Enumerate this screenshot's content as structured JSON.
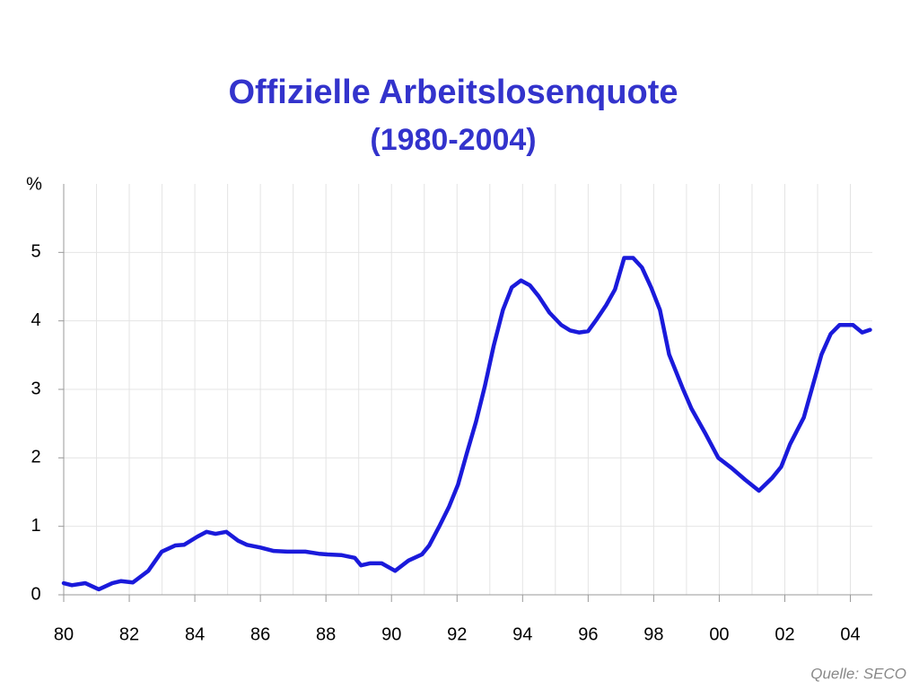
{
  "chart_data": {
    "type": "line",
    "title": "Offizielle Arbeitslosenquote",
    "subtitle": "(1980-2004)",
    "y_label": "%",
    "source": "Quelle: SECO",
    "x": [
      1980.0,
      1980.25,
      1980.66,
      1981.07,
      1981.48,
      1981.75,
      1982.11,
      1982.58,
      1982.99,
      1983.4,
      1983.67,
      1984.08,
      1984.36,
      1984.63,
      1984.96,
      1985.32,
      1985.59,
      1986.0,
      1986.41,
      1986.82,
      1987.37,
      1987.78,
      1988.05,
      1988.47,
      1988.88,
      1989.07,
      1989.34,
      1989.7,
      1990.11,
      1990.52,
      1990.93,
      1991.15,
      1991.48,
      1991.75,
      1992.03,
      1992.3,
      1992.58,
      1992.85,
      1993.12,
      1993.4,
      1993.67,
      1993.95,
      1994.22,
      1994.49,
      1994.82,
      1995.18,
      1995.45,
      1995.73,
      1996.0,
      1996.27,
      1996.55,
      1996.82,
      1997.1,
      1997.37,
      1997.64,
      1997.92,
      1998.19,
      1998.47,
      1998.88,
      1999.15,
      1999.56,
      1999.97,
      2000.38,
      2000.79,
      2001.21,
      2001.62,
      2001.89,
      2002.16,
      2002.58,
      2002.85,
      2003.12,
      2003.4,
      2003.67,
      2004.08,
      2004.36,
      2004.6
    ],
    "series": [
      {
        "name": "Arbeitslosenquote",
        "color": "#1a1adb",
        "values": [
          0.17,
          0.14,
          0.17,
          0.08,
          0.17,
          0.2,
          0.18,
          0.35,
          0.63,
          0.72,
          0.73,
          0.85,
          0.92,
          0.89,
          0.92,
          0.79,
          0.73,
          0.69,
          0.64,
          0.63,
          0.63,
          0.6,
          0.59,
          0.58,
          0.54,
          0.43,
          0.46,
          0.46,
          0.35,
          0.5,
          0.59,
          0.72,
          1.02,
          1.28,
          1.61,
          2.07,
          2.53,
          3.05,
          3.64,
          4.16,
          4.49,
          4.59,
          4.52,
          4.36,
          4.12,
          3.94,
          3.86,
          3.83,
          3.85,
          4.03,
          4.23,
          4.46,
          4.92,
          4.92,
          4.78,
          4.49,
          4.16,
          3.51,
          3.02,
          2.72,
          2.37,
          2.0,
          1.85,
          1.68,
          1.52,
          1.71,
          1.87,
          2.2,
          2.59,
          3.05,
          3.51,
          3.81,
          3.94,
          3.94,
          3.83,
          3.87
        ]
      }
    ],
    "xlim": [
      1980,
      2004.67
    ],
    "xticks": [
      {
        "value": 1980,
        "label": "80"
      },
      {
        "value": 1982,
        "label": "82"
      },
      {
        "value": 1984,
        "label": "84"
      },
      {
        "value": 1986,
        "label": "86"
      },
      {
        "value": 1988,
        "label": "88"
      },
      {
        "value": 1990,
        "label": "90"
      },
      {
        "value": 1992,
        "label": "92"
      },
      {
        "value": 1994,
        "label": "94"
      },
      {
        "value": 1996,
        "label": "96"
      },
      {
        "value": 1998,
        "label": "98"
      },
      {
        "value": 2000,
        "label": "00"
      },
      {
        "value": 2002,
        "label": "02"
      },
      {
        "value": 2004,
        "label": "04"
      }
    ],
    "xminor_ticks": [
      1981,
      1983,
      1985,
      1987,
      1989,
      1991,
      1993,
      1995,
      1997,
      1999,
      2001,
      2003
    ],
    "ylim": [
      0,
      6
    ],
    "yticks": [
      0,
      1,
      2,
      3,
      4,
      5
    ],
    "grid": true
  }
}
